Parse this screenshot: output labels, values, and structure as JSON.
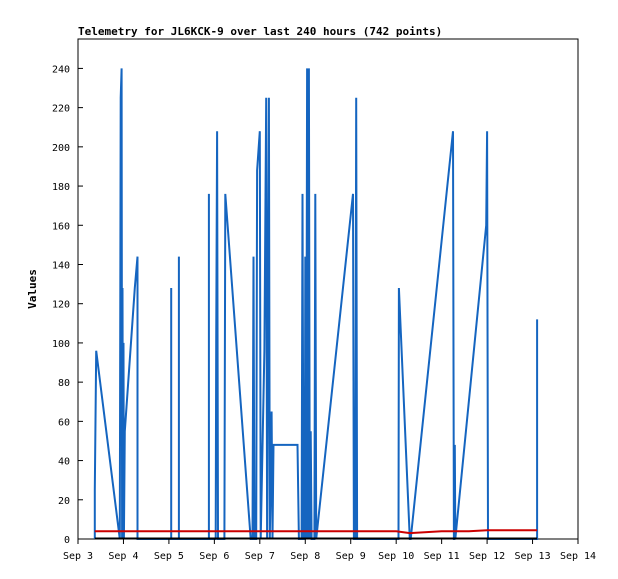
{
  "chart_data": {
    "type": "line",
    "title": "Telemetry for JL6KCK-9 over last 240 hours (742 points)",
    "xlabel": "",
    "ylabel": "Values",
    "x_ticks": [
      "Sep 3",
      "Sep 4",
      "Sep 5",
      "Sep 6",
      "Sep 7",
      "Sep 8",
      "Sep 9",
      "Sep 10",
      "Sep 11",
      "Sep 12",
      "Sep 13",
      "Sep 14"
    ],
    "xlim": [
      3,
      14
    ],
    "ylim": [
      0,
      255
    ],
    "y_ticks": [
      0,
      20,
      40,
      60,
      80,
      100,
      120,
      140,
      160,
      180,
      200,
      220,
      240
    ],
    "grid": false,
    "series": [
      {
        "color": "#1565c0",
        "points": [
          [
            3.37,
            0
          ],
          [
            3.37,
            25
          ],
          [
            3.4,
            96
          ],
          [
            3.92,
            0
          ],
          [
            3.94,
            225
          ],
          [
            3.96,
            240
          ],
          [
            3.97,
            0
          ],
          [
            3.98,
            128
          ],
          [
            3.99,
            0
          ],
          [
            4.0,
            100
          ],
          [
            4.01,
            0
          ],
          [
            4.03,
            55
          ],
          [
            4.25,
            128
          ],
          [
            4.31,
            144
          ],
          [
            4.31,
            0
          ],
          [
            5.05,
            0
          ],
          [
            5.05,
            128
          ],
          [
            5.05,
            0
          ],
          [
            5.22,
            0
          ],
          [
            5.22,
            144
          ],
          [
            5.22,
            0
          ],
          [
            5.88,
            0
          ],
          [
            5.88,
            176
          ],
          [
            5.88,
            0
          ],
          [
            6.03,
            0
          ],
          [
            6.04,
            100
          ],
          [
            6.06,
            208
          ],
          [
            6.08,
            0
          ],
          [
            6.22,
            0
          ],
          [
            6.24,
            176
          ],
          [
            6.8,
            0
          ],
          [
            6.84,
            0
          ],
          [
            6.86,
            144
          ],
          [
            6.88,
            0
          ],
          [
            6.92,
            0
          ],
          [
            6.94,
            188
          ],
          [
            7.0,
            208
          ],
          [
            7.02,
            0
          ],
          [
            7.1,
            96
          ],
          [
            7.14,
            225
          ],
          [
            7.16,
            0
          ],
          [
            7.2,
            225
          ],
          [
            7.22,
            0
          ],
          [
            7.26,
            65
          ],
          [
            7.28,
            0
          ],
          [
            7.3,
            48
          ],
          [
            7.83,
            48
          ],
          [
            7.86,
            0
          ],
          [
            7.92,
            0
          ],
          [
            7.94,
            176
          ],
          [
            7.96,
            0
          ],
          [
            7.99,
            0
          ],
          [
            8.0,
            144
          ],
          [
            8.02,
            0
          ],
          [
            8.04,
            240
          ],
          [
            8.06,
            0
          ],
          [
            8.08,
            240
          ],
          [
            8.1,
            0
          ],
          [
            8.12,
            55
          ],
          [
            8.14,
            0
          ],
          [
            8.2,
            0
          ],
          [
            8.22,
            176
          ],
          [
            8.24,
            0
          ],
          [
            9.05,
            176
          ],
          [
            9.07,
            0
          ],
          [
            9.1,
            0
          ],
          [
            9.12,
            225
          ],
          [
            9.14,
            0
          ],
          [
            10.05,
            0
          ],
          [
            10.06,
            128
          ],
          [
            10.3,
            0
          ],
          [
            10.32,
            0
          ],
          [
            11.25,
            208
          ],
          [
            11.27,
            0
          ],
          [
            11.28,
            0
          ],
          [
            11.29,
            48
          ],
          [
            11.3,
            0
          ],
          [
            11.98,
            160
          ],
          [
            12.0,
            208
          ],
          [
            12.02,
            0
          ],
          [
            13.1,
            0
          ],
          [
            13.1,
            112
          ],
          [
            13.1,
            0
          ]
        ]
      },
      {
        "color": "#cc0000",
        "points": [
          [
            3.37,
            4
          ],
          [
            10.0,
            4
          ],
          [
            10.3,
            3
          ],
          [
            11.0,
            4
          ],
          [
            11.6,
            4
          ],
          [
            12.0,
            4.5
          ],
          [
            13.1,
            4.5
          ]
        ]
      }
    ]
  }
}
